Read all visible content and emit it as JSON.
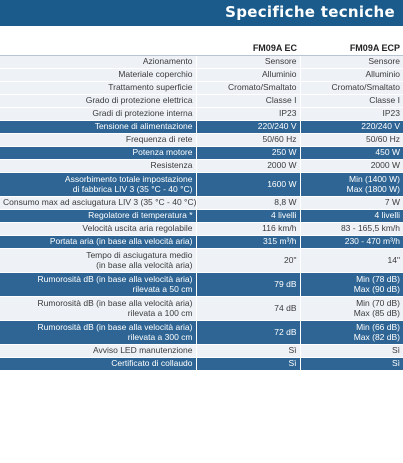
{
  "header": {
    "title": "Specifiche tecniche"
  },
  "table": {
    "columns": [
      "FM09A EC",
      "FM09A ECP"
    ],
    "rows": [
      {
        "label": [
          "Azionamento"
        ],
        "v1": [
          "Sensore"
        ],
        "v2": [
          "Sensore"
        ],
        "style": "light"
      },
      {
        "label": [
          "Materiale coperchio"
        ],
        "v1": [
          "Alluminio"
        ],
        "v2": [
          "Alluminio"
        ],
        "style": "light"
      },
      {
        "label": [
          "Trattamento superficie"
        ],
        "v1": [
          "Cromato/Smaltato"
        ],
        "v2": [
          "Cromato/Smaltato"
        ],
        "style": "light"
      },
      {
        "label": [
          "Grado di protezione elettrica"
        ],
        "v1": [
          "Classe I"
        ],
        "v2": [
          "Classe I"
        ],
        "style": "light"
      },
      {
        "label": [
          "Gradi di protezione interna"
        ],
        "v1": [
          "IP23"
        ],
        "v2": [
          "IP23"
        ],
        "style": "light"
      },
      {
        "label": [
          "Tensione di alimentazione"
        ],
        "v1": [
          "220/240 V"
        ],
        "v2": [
          "220/240 V"
        ],
        "style": "dark"
      },
      {
        "label": [
          "Frequenza di rete"
        ],
        "v1": [
          "50/60 Hz"
        ],
        "v2": [
          "50/60 Hz"
        ],
        "style": "light"
      },
      {
        "label": [
          "Potenza motore"
        ],
        "v1": [
          "250 W"
        ],
        "v2": [
          "450 W"
        ],
        "style": "dark"
      },
      {
        "label": [
          "Resistenza"
        ],
        "v1": [
          "2000 W"
        ],
        "v2": [
          "2000 W"
        ],
        "style": "light"
      },
      {
        "label": [
          "Assorbimento totale impostazione",
          "di fabbrica LIV 3 (35 °C - 40 °C)"
        ],
        "v1": [
          "1600 W",
          ""
        ],
        "v2": [
          "Min (1400 W)",
          "Max (1800 W)"
        ],
        "style": "dark"
      },
      {
        "label": [
          "Consumo max ad asciugatura LIV 3 (35 °C - 40 °C)"
        ],
        "v1": [
          "8,8 W"
        ],
        "v2": [
          "7 W"
        ],
        "style": "light"
      },
      {
        "label": [
          "Regolatore di temperatura *"
        ],
        "v1": [
          "4 livelli"
        ],
        "v2": [
          "4 livelli"
        ],
        "style": "dark"
      },
      {
        "label": [
          "Velocità uscita aria regolabile"
        ],
        "v1": [
          "116 km/h"
        ],
        "v2": [
          "83 - 165,5 km/h"
        ],
        "style": "light"
      },
      {
        "label": [
          "Portata aria (in base alla velocità aria)"
        ],
        "v1": [
          "315 m³/h"
        ],
        "v2": [
          "230 - 470 m³/h"
        ],
        "style": "dark"
      },
      {
        "label": [
          "Tempo di asciugatura medio",
          "(in base alla velocità aria)"
        ],
        "v1": [
          "20\"",
          ""
        ],
        "v2": [
          "14\"",
          ""
        ],
        "style": "light"
      },
      {
        "label": [
          "Rumorosità dB (in base alla velocità aria)",
          "rilevata a 50 cm"
        ],
        "v1": [
          "79 dB",
          ""
        ],
        "v2": [
          "Min (78 dB)",
          "Max (90 dB)"
        ],
        "style": "dark"
      },
      {
        "label": [
          "Rumorosità dB (in base alla velocità aria)",
          "rilevata a 100 cm"
        ],
        "v1": [
          "74 dB",
          ""
        ],
        "v2": [
          "Min (70 dB)",
          "Max (85 dB)"
        ],
        "style": "light"
      },
      {
        "label": [
          "Rumorosità dB (in base alla velocità aria)",
          "rilevata a 300 cm"
        ],
        "v1": [
          "72 dB",
          ""
        ],
        "v2": [
          "Min (66 dB)",
          "Max (82 dB)"
        ],
        "style": "dark"
      },
      {
        "label": [
          "Avviso LED manutenzione"
        ],
        "v1": [
          "Sì"
        ],
        "v2": [
          "Sì"
        ],
        "style": "light"
      },
      {
        "label": [
          "Certificato di collaudo"
        ],
        "v1": [
          "Sì"
        ],
        "v2": [
          "Sì"
        ],
        "style": "dark"
      }
    ]
  }
}
